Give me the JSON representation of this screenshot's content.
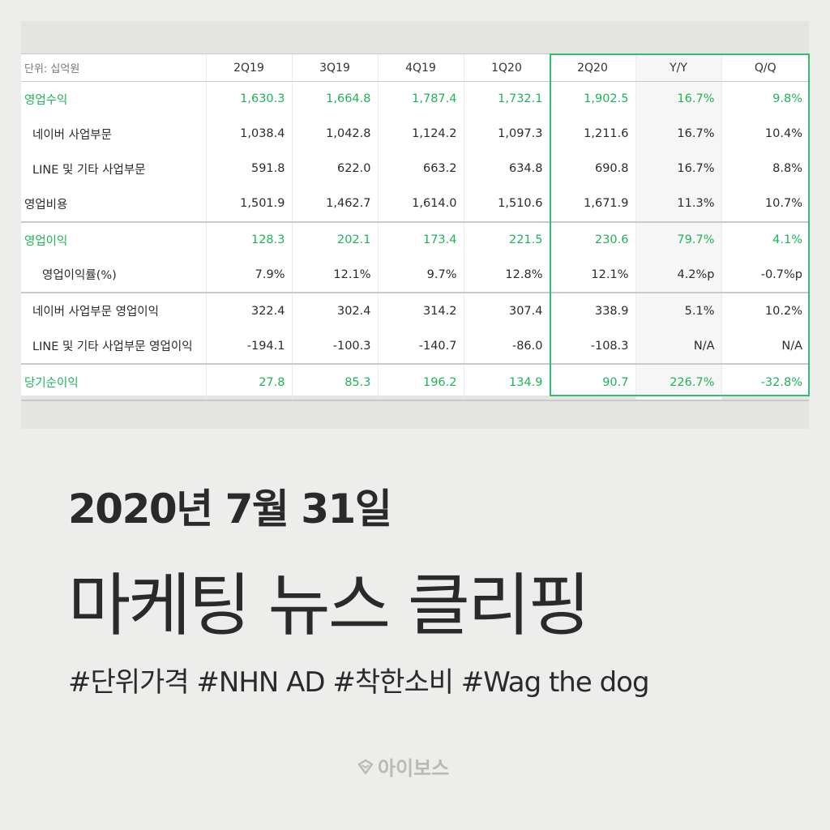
{
  "table": {
    "unit_label": "단위: 십억원",
    "columns": [
      "2Q19",
      "3Q19",
      "4Q19",
      "1Q20",
      "2Q20",
      "Y/Y",
      "Q/Q"
    ],
    "rows": [
      {
        "label": "영업수익",
        "values": [
          "1,630.3",
          "1,664.8",
          "1,787.4",
          "1,732.1",
          "1,902.5",
          "16.7%",
          "9.8%"
        ]
      },
      {
        "label": "네이버 사업부문",
        "values": [
          "1,038.4",
          "1,042.8",
          "1,124.2",
          "1,097.3",
          "1,211.6",
          "16.7%",
          "10.4%"
        ]
      },
      {
        "label": "LINE 및 기타 사업부문",
        "values": [
          "591.8",
          "622.0",
          "663.2",
          "634.8",
          "690.8",
          "16.7%",
          "8.8%"
        ]
      },
      {
        "label": "영업비용",
        "values": [
          "1,501.9",
          "1,462.7",
          "1,614.0",
          "1,510.6",
          "1,671.9",
          "11.3%",
          "10.7%"
        ]
      },
      {
        "label": "영업이익",
        "values": [
          "128.3",
          "202.1",
          "173.4",
          "221.5",
          "230.6",
          "79.7%",
          "4.1%"
        ]
      },
      {
        "label": "영업이익률(%)",
        "values": [
          "7.9%",
          "12.1%",
          "9.7%",
          "12.8%",
          "12.1%",
          "4.2%p",
          "-0.7%p"
        ]
      },
      {
        "label": "네이버 사업부문 영업이익",
        "values": [
          "322.4",
          "302.4",
          "314.2",
          "307.4",
          "338.9",
          "5.1%",
          "10.2%"
        ]
      },
      {
        "label": "LINE 및 기타 사업부문 영업이익",
        "values": [
          "-194.1",
          "-100.3",
          "-140.7",
          "-86.0",
          "-108.3",
          "N/A",
          "N/A"
        ]
      },
      {
        "label": "당기순이익",
        "values": [
          "27.8",
          "85.3",
          "196.2",
          "134.9",
          "90.7",
          "226.7%",
          "-32.8%"
        ]
      }
    ]
  },
  "date_title": "2020년 7월 31일",
  "main_title": "마케팅 뉴스 클리핑",
  "tags": "#단위가격 #NHN AD #착한소비 #Wag the dog",
  "logo": {
    "icon": "iboss-logo-icon",
    "text": "아이보스"
  },
  "colors": {
    "accent_green": "#1fb45a",
    "highlight_border": "#2ec06a",
    "background": "#ededeb"
  }
}
